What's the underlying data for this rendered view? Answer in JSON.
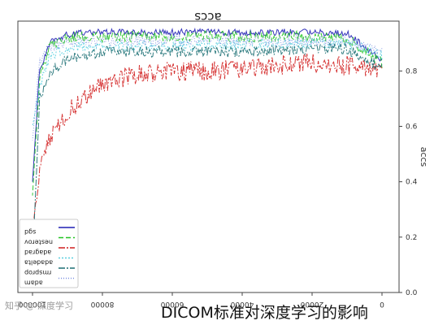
{
  "chart_data": {
    "type": "line",
    "title": "accs",
    "title_rendering": "mirrored and upside-down",
    "xlabel": "",
    "ylabel": "accs",
    "x_reversed": true,
    "xlim": [
      0,
      100000
    ],
    "ylim": [
      0.0,
      1.0
    ],
    "x_ticks": [
      100000,
      80000,
      60000,
      40000,
      20000,
      0
    ],
    "y_ticks": [
      0.0,
      0.2,
      0.4,
      0.6,
      0.8
    ],
    "y_tick_labels": [
      "0.0",
      "0.2",
      "0.4",
      "0.6",
      "0.8"
    ],
    "grid": false,
    "legend_position": "bottom-left",
    "x": [
      0,
      10000,
      20000,
      30000,
      40000,
      50000,
      60000,
      70000,
      80000,
      85000,
      90000,
      95000,
      98000,
      100000
    ],
    "series": [
      {
        "name": "sgd",
        "color": "#1f1fb4",
        "dash": "solid",
        "values": [
          0.84,
          0.935,
          0.94,
          0.94,
          0.94,
          0.94,
          0.94,
          0.94,
          0.94,
          0.94,
          0.93,
          0.91,
          0.8,
          0.4
        ]
      },
      {
        "name": "nesterov",
        "color": "#22c422",
        "dash": "6,3",
        "values": [
          0.83,
          0.92,
          0.925,
          0.925,
          0.925,
          0.925,
          0.925,
          0.925,
          0.925,
          0.925,
          0.92,
          0.89,
          0.78,
          0.35
        ]
      },
      {
        "name": "adagrad",
        "color": "#d11f1f",
        "dash": "8,2,2,2",
        "values": [
          0.8,
          0.82,
          0.83,
          0.82,
          0.81,
          0.8,
          0.8,
          0.79,
          0.75,
          0.71,
          0.65,
          0.55,
          0.45,
          0.22
        ]
      },
      {
        "name": "adadelta",
        "color": "#59cfe0",
        "dash": "2,2",
        "values": [
          0.86,
          0.9,
          0.9,
          0.9,
          0.895,
          0.895,
          0.89,
          0.89,
          0.89,
          0.89,
          0.88,
          0.86,
          0.74,
          0.6
        ]
      },
      {
        "name": "rmsprop",
        "color": "#1b6f73",
        "dash": "8,2,2,2",
        "values": [
          0.81,
          0.88,
          0.88,
          0.875,
          0.87,
          0.87,
          0.87,
          0.87,
          0.87,
          0.86,
          0.84,
          0.8,
          0.7,
          0.1
        ]
      },
      {
        "name": "adam",
        "color": "#7b8fe0",
        "dash": "1,2",
        "values": [
          0.87,
          0.91,
          0.91,
          0.91,
          0.91,
          0.91,
          0.91,
          0.91,
          0.91,
          0.91,
          0.9,
          0.89,
          0.83,
          0.55
        ]
      }
    ]
  },
  "watermark": "知乎 @ 深度学习",
  "caption": "DICOM标准对深度学习的影响"
}
